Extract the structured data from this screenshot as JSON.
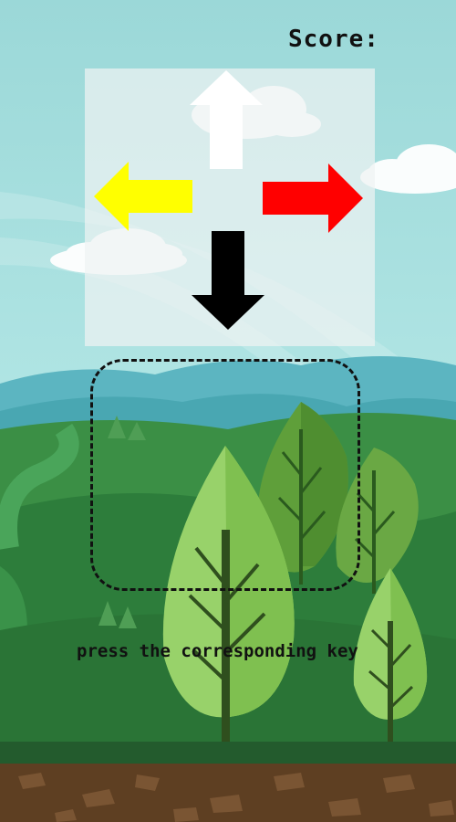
{
  "hud": {
    "score_label": "Score:"
  },
  "arrows": {
    "up": {
      "color": "#ffffff",
      "icon": "arrow-up-icon"
    },
    "left": {
      "color": "#ffff00",
      "icon": "arrow-left-icon"
    },
    "right": {
      "color": "#ff0000",
      "icon": "arrow-right-icon"
    },
    "down": {
      "color": "#000000",
      "icon": "arrow-down-icon"
    }
  },
  "instruction": "press the corresponding key",
  "colors": {
    "sky": "#9ad9d6",
    "far_hills": "#5fb7c5",
    "hills": "#2f8a3f",
    "ground": "#235b2d",
    "soil": "#5e3f22"
  }
}
